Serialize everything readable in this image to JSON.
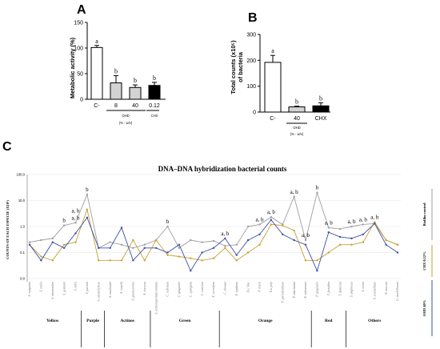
{
  "panel_a": {
    "letter": "A",
    "chart_data": {
      "type": "bar",
      "ylabel": "Metabolic activity (%)",
      "ylim": [
        0,
        150
      ],
      "yticks": [
        "0",
        "50",
        "100",
        "150"
      ],
      "categories": [
        "C-",
        "8",
        "40",
        "0.12"
      ],
      "values": [
        101,
        32,
        23,
        27
      ],
      "errors": [
        4,
        14,
        5,
        6
      ],
      "significance": [
        "a",
        "b",
        "b",
        "b"
      ],
      "fill_colors": [
        "#ffffff",
        "#d3d3d3",
        "#d3d3d3",
        "#000000"
      ],
      "group_labels": [
        "OHD",
        "CHX"
      ],
      "unit_label": "(% - w/v)"
    }
  },
  "panel_b": {
    "letter": "B",
    "chart_data": {
      "type": "bar",
      "ylabel": "Total counts (x10⁵) of bacteria",
      "ylabel_line1": "Total counts (x10⁵)",
      "ylabel_line2": "of bacteria",
      "ylim": [
        0,
        300
      ],
      "yticks": [
        "0",
        "100",
        "200",
        "300"
      ],
      "categories": [
        "C-",
        "40",
        "CHX"
      ],
      "values": [
        192,
        20,
        24
      ],
      "errors": [
        27,
        3,
        12
      ],
      "significance": [
        "a",
        "b",
        "b"
      ],
      "fill_colors": [
        "#ffffff",
        "#d3d3d3",
        "#000000"
      ],
      "group_labels": [
        "OHD"
      ],
      "unit_label": "(% - w/v)"
    }
  },
  "panel_c": {
    "letter": "C",
    "chart_data": {
      "type": "line",
      "title": "DNA–DNA hybridization bacterial counts",
      "ylabel": "COUNTS OF EACH ESPECIE (X10⁵)",
      "y_scale": "log",
      "yticks": [
        "100.0",
        "10.0",
        "1.0",
        "0.1",
        "0.0"
      ],
      "x": [
        "S. sanguinis",
        "S. oralis",
        "S. intermedius",
        "S. gordonii",
        "S. mitis",
        "V. parvula",
        "A. odontolyticus",
        "A. naeslundii",
        "A. israelii",
        "A. gerencseriae",
        "A. viscosus",
        "A. actinomycetemcomitans",
        "C. ochracea",
        "C. gingivalis",
        "C. sputigena",
        "C. concisus",
        "E. corrodens",
        "C. showae",
        "E. nodatum",
        "F.n. Vinc",
        "P. micra",
        "F.n. poly",
        "F. periodonticum",
        "P. intermedia",
        "E. saburreum",
        "P. gingivalis",
        "T. forsythia",
        "T. denticola",
        "S. anginosus",
        "S. noxia",
        "S. constellatus",
        "N. mucosa",
        "G. morbillorum"
      ],
      "groups": [
        {
          "name": "Yellow",
          "count": 5
        },
        {
          "name": "Purple",
          "count": 2
        },
        {
          "name": "Actinos",
          "count": 4
        },
        {
          "name": "Green",
          "count": 6
        },
        {
          "name": "Orange",
          "count": 8
        },
        {
          "name": "Red",
          "count": 3
        },
        {
          "name": "Others",
          "count": 5
        }
      ],
      "series": [
        {
          "name": "Biofilm control",
          "color": "#9e9e9e",
          "values": [
            0.25,
            0.3,
            0.35,
            1.1,
            1.4,
            17,
            0.15,
            0.25,
            0.2,
            0.15,
            0.2,
            0.3,
            1.0,
            0.15,
            0.3,
            0.25,
            0.28,
            0.18,
            0.2,
            1.0,
            1.2,
            2.3,
            1.2,
            14,
            0.3,
            20,
            0.9,
            0.8,
            1.0,
            1.2,
            1.3,
            0.3,
            0.2
          ]
        },
        {
          "name": "CHX 0.12%",
          "color": "#c8a033",
          "values": [
            0.2,
            0.07,
            0.05,
            0.2,
            0.25,
            4.5,
            0.05,
            0.05,
            0.05,
            0.3,
            0.05,
            0.3,
            0.08,
            0.07,
            0.06,
            0.05,
            0.06,
            0.15,
            0.05,
            0.1,
            0.2,
            1.2,
            1.1,
            0.7,
            0.05,
            0.05,
            0.1,
            0.2,
            0.2,
            0.25,
            1.5,
            0.3,
            0.2
          ]
        },
        {
          "name": "OHD 40%",
          "color": "#3b4fa8",
          "values": [
            0.2,
            0.05,
            0.25,
            0.15,
            0.55,
            2.2,
            0.15,
            0.15,
            0.9,
            0.05,
            0.15,
            0.15,
            0.1,
            0.2,
            0.02,
            0.1,
            0.15,
            0.35,
            0.08,
            0.3,
            0.5,
            1.8,
            0.5,
            0.3,
            0.2,
            0.02,
            0.6,
            0.4,
            0.35,
            0.5,
            1.3,
            0.2,
            0.1
          ]
        }
      ],
      "annotations": [
        {
          "index": 3,
          "text": "b"
        },
        {
          "index": 4,
          "text": "a, b"
        },
        {
          "index": 4,
          "text": "a, b"
        },
        {
          "index": 5,
          "text": "b"
        },
        {
          "index": 12,
          "text": "b"
        },
        {
          "index": 17,
          "text": "a, b"
        },
        {
          "index": 20,
          "text": "a, b"
        },
        {
          "index": 21,
          "text": "a, b"
        },
        {
          "index": 23,
          "text": "a, b"
        },
        {
          "index": 24,
          "text": "a, b"
        },
        {
          "index": 25,
          "text": "b"
        },
        {
          "index": 26,
          "text": "a, b"
        },
        {
          "index": 28,
          "text": "a, b"
        },
        {
          "index": 29,
          "text": "a, b"
        },
        {
          "index": 30,
          "text": "a, b"
        }
      ]
    }
  }
}
